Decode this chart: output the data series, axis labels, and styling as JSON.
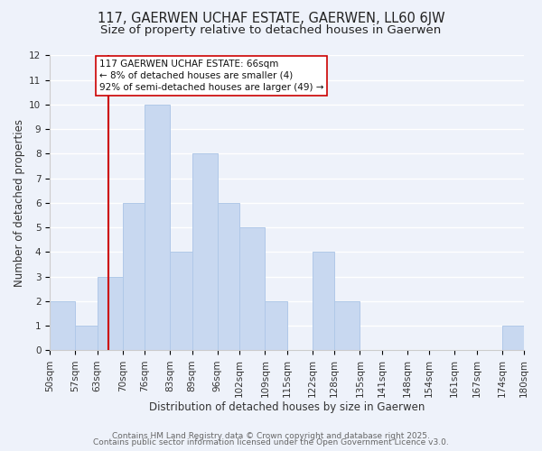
{
  "title": "117, GAERWEN UCHAF ESTATE, GAERWEN, LL60 6JW",
  "subtitle": "Size of property relative to detached houses in Gaerwen",
  "xlabel": "Distribution of detached houses by size in Gaerwen",
  "ylabel": "Number of detached properties",
  "bin_edges": [
    50,
    57,
    63,
    70,
    76,
    83,
    89,
    96,
    102,
    109,
    115,
    122,
    128,
    135,
    141,
    148,
    154,
    161,
    167,
    174,
    180
  ],
  "bin_counts": [
    2,
    1,
    3,
    6,
    10,
    4,
    8,
    6,
    5,
    2,
    0,
    4,
    2,
    0,
    0,
    0,
    0,
    0,
    0,
    1
  ],
  "bar_color": "#c8d8f0",
  "bar_edge_color": "#b0c8e8",
  "vline_x": 66,
  "vline_color": "#cc0000",
  "annotation_text": "117 GAERWEN UCHAF ESTATE: 66sqm\n← 8% of detached houses are smaller (4)\n92% of semi-detached houses are larger (49) →",
  "annotation_box_color": "white",
  "annotation_box_edge": "#cc0000",
  "ylim": [
    0,
    12
  ],
  "yticks": [
    0,
    1,
    2,
    3,
    4,
    5,
    6,
    7,
    8,
    9,
    10,
    11,
    12
  ],
  "tick_labels": [
    "50sqm",
    "57sqm",
    "63sqm",
    "70sqm",
    "76sqm",
    "83sqm",
    "89sqm",
    "96sqm",
    "102sqm",
    "109sqm",
    "115sqm",
    "122sqm",
    "128sqm",
    "135sqm",
    "141sqm",
    "148sqm",
    "154sqm",
    "161sqm",
    "167sqm",
    "174sqm",
    "180sqm"
  ],
  "footer1": "Contains HM Land Registry data © Crown copyright and database right 2025.",
  "footer2": "Contains public sector information licensed under the Open Government Licence v3.0.",
  "background_color": "#eef2fa",
  "grid_color": "#ffffff",
  "title_fontsize": 10.5,
  "subtitle_fontsize": 9.5,
  "axis_label_fontsize": 8.5,
  "tick_fontsize": 7.5,
  "annotation_fontsize": 7.5,
  "footer_fontsize": 6.5
}
